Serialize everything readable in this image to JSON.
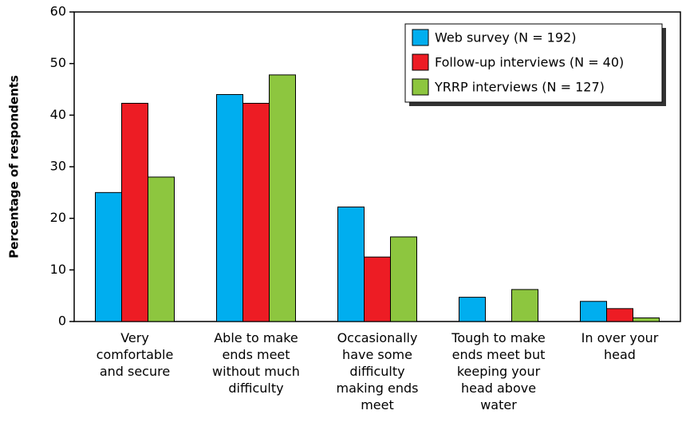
{
  "chart_data": {
    "type": "bar",
    "y_label": "Percentage of respondents",
    "categories": [
      "Very\ncomfortable\nand secure",
      "Able to make\nends meet\nwithout much\ndifficulty",
      "Occasionally\nhave some\ndifficulty\nmaking ends\nmeet",
      "Tough to make\nends meet but\nkeeping your\nhead above\nwater",
      "In over your\nhead"
    ],
    "series": [
      {
        "name": "Web survey (N = 192)",
        "color": "#00aeef",
        "values": [
          25,
          44,
          22.2,
          4.7,
          3.9
        ]
      },
      {
        "name": "Follow-up interviews (N = 40)",
        "color": "#ed1c24",
        "values": [
          42.3,
          42.3,
          12.5,
          0,
          2.5
        ]
      },
      {
        "name": "YRRP interviews (N = 127)",
        "color": "#8dc63f",
        "values": [
          28,
          47.8,
          16.4,
          6.2,
          0.7
        ]
      }
    ],
    "ylim": [
      0,
      60
    ],
    "yticks": [
      0,
      10,
      20,
      30,
      40,
      50,
      60
    ],
    "legend": "upper right"
  }
}
